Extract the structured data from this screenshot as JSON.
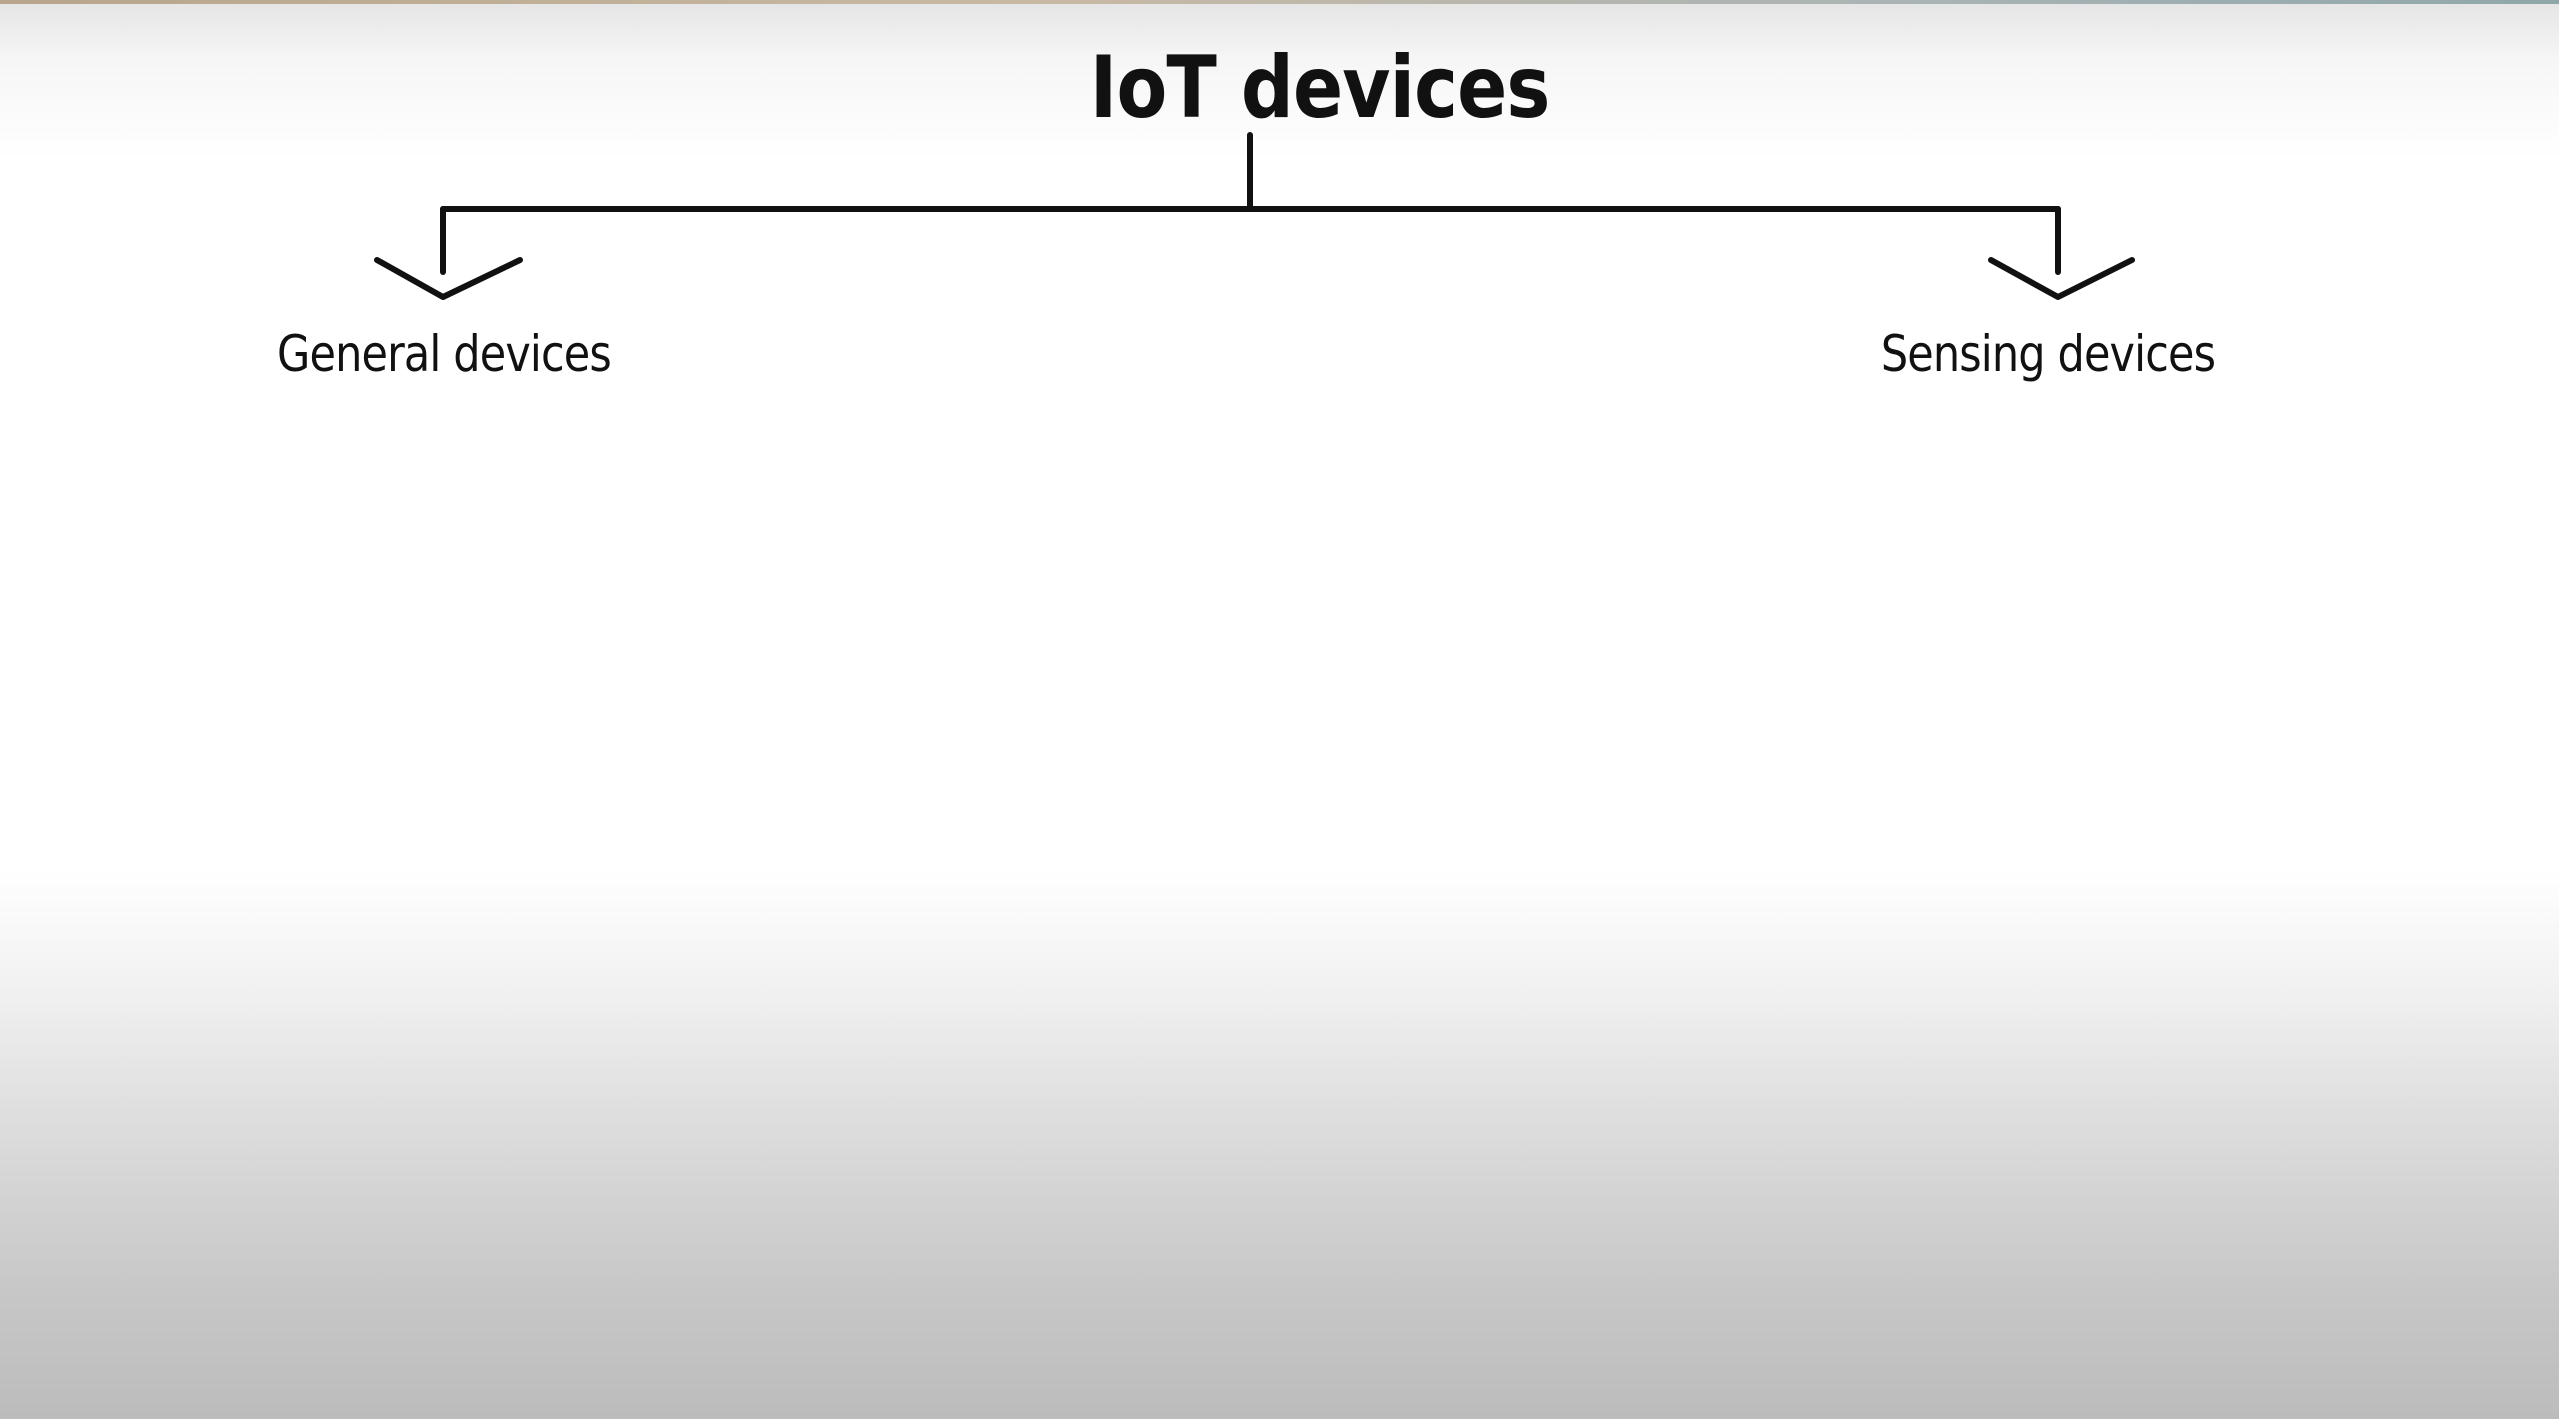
{
  "diagram": {
    "root": {
      "label": "IoT devices"
    },
    "children": [
      {
        "label": "General devices"
      },
      {
        "label": "Sensing devices"
      }
    ],
    "colors": {
      "stroke": "#111111",
      "text": "#111111",
      "background": "#ffffff"
    }
  }
}
